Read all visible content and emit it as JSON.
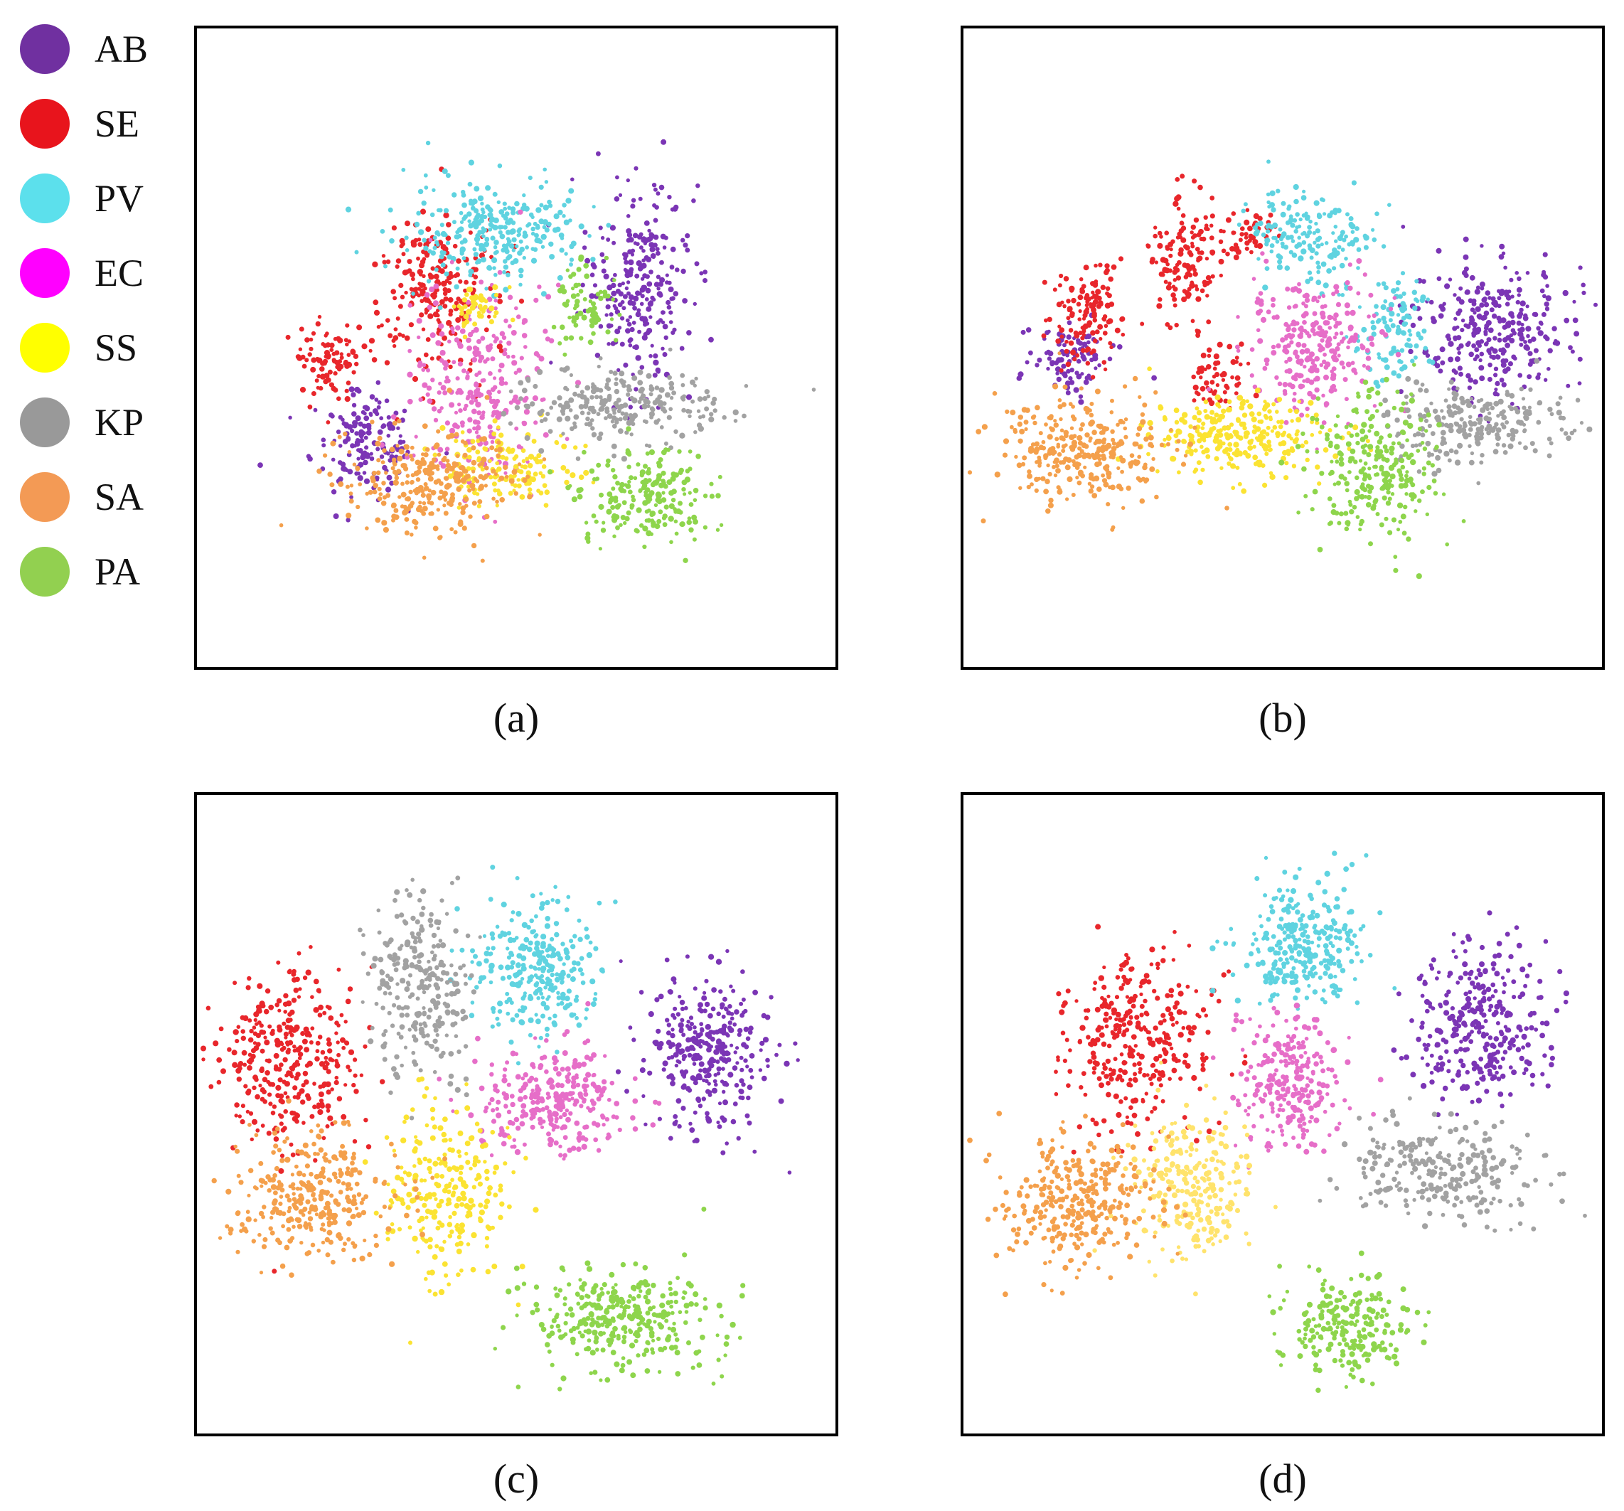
{
  "legend": [
    {
      "label": "AB",
      "color": "#7030a0"
    },
    {
      "label": "SE",
      "color": "#e8141c"
    },
    {
      "label": "PV",
      "color": "#5ce0ec"
    },
    {
      "label": "EC",
      "color": "#ff00ff"
    },
    {
      "label": "SS",
      "color": "#ffff00"
    },
    {
      "label": "KP",
      "color": "#999999"
    },
    {
      "label": "SA",
      "color": "#f39a55"
    },
    {
      "label": "PA",
      "color": "#92d050"
    }
  ],
  "chart_data": [
    {
      "type": "scatter",
      "caption": "(a)",
      "xlim": [
        0,
        100
      ],
      "ylim": [
        0,
        100
      ],
      "grid": false,
      "series": [
        {
          "name": "AB",
          "color": "#7b35b5",
          "clusters": [
            {
              "cx": 69,
              "cy": 60,
              "sx": 4,
              "sy": 8,
              "n": 260
            },
            {
              "cx": 26,
              "cy": 35,
              "sx": 4,
              "sy": 4,
              "n": 160
            }
          ]
        },
        {
          "name": "SE",
          "color": "#e8262b",
          "clusters": [
            {
              "cx": 37,
              "cy": 59,
              "sx": 5,
              "sy": 6,
              "n": 230
            },
            {
              "cx": 21,
              "cy": 48,
              "sx": 3,
              "sy": 3,
              "n": 90
            }
          ]
        },
        {
          "name": "PV",
          "color": "#5fd3e0",
          "clusters": [
            {
              "cx": 47,
              "cy": 68,
              "sx": 7,
              "sy": 4,
              "n": 280
            }
          ]
        },
        {
          "name": "EC",
          "color": "#e66ec8",
          "clusters": [
            {
              "cx": 44,
              "cy": 44,
              "sx": 5,
              "sy": 8,
              "n": 280
            }
          ]
        },
        {
          "name": "SS",
          "color": "#fbe332",
          "clusters": [
            {
              "cx": 49,
              "cy": 31,
              "sx": 5,
              "sy": 3,
              "n": 150
            },
            {
              "cx": 44,
              "cy": 56,
              "sx": 2,
              "sy": 2,
              "n": 50
            }
          ]
        },
        {
          "name": "KP",
          "color": "#a2a2a2",
          "clusters": [
            {
              "cx": 66,
              "cy": 41,
              "sx": 8,
              "sy": 3,
              "n": 240
            }
          ]
        },
        {
          "name": "SA",
          "color": "#f4a04c",
          "clusters": [
            {
              "cx": 37,
              "cy": 29,
              "sx": 7,
              "sy": 4,
              "n": 280
            }
          ]
        },
        {
          "name": "PA",
          "color": "#8ed54c",
          "clusters": [
            {
              "cx": 70,
              "cy": 27,
              "sx": 5,
              "sy": 4,
              "n": 200
            },
            {
              "cx": 61,
              "cy": 56,
              "sx": 2.5,
              "sy": 3,
              "n": 70
            }
          ]
        }
      ]
    },
    {
      "type": "scatter",
      "caption": "(b)",
      "xlim": [
        0,
        100
      ],
      "ylim": [
        0,
        100
      ],
      "grid": false,
      "series": [
        {
          "name": "AB",
          "color": "#7b35b5",
          "clusters": [
            {
              "cx": 83,
              "cy": 53,
              "sx": 6,
              "sy": 5,
              "n": 300
            },
            {
              "cx": 17,
              "cy": 48,
              "sx": 3,
              "sy": 3,
              "n": 90
            }
          ]
        },
        {
          "name": "SE",
          "color": "#e8262b",
          "clusters": [
            {
              "cx": 19,
              "cy": 55,
              "sx": 3,
              "sy": 4,
              "n": 130
            },
            {
              "cx": 35,
              "cy": 64,
              "sx": 3,
              "sy": 5,
              "n": 140
            },
            {
              "cx": 45,
              "cy": 68,
              "sx": 2,
              "sy": 2,
              "n": 50
            },
            {
              "cx": 40,
              "cy": 45,
              "sx": 2,
              "sy": 3,
              "n": 60
            }
          ]
        },
        {
          "name": "PV",
          "color": "#5fd3e0",
          "clusters": [
            {
              "cx": 54,
              "cy": 67,
              "sx": 5,
              "sy": 4,
              "n": 170
            },
            {
              "cx": 67,
              "cy": 52,
              "sx": 3,
              "sy": 4,
              "n": 100
            }
          ]
        },
        {
          "name": "EC",
          "color": "#e66ec8",
          "clusters": [
            {
              "cx": 55,
              "cy": 51,
              "sx": 5,
              "sy": 5,
              "n": 280
            }
          ]
        },
        {
          "name": "SS",
          "color": "#fbe332",
          "clusters": [
            {
              "cx": 43,
              "cy": 36,
              "sx": 7,
              "sy": 3,
              "n": 260
            }
          ]
        },
        {
          "name": "KP",
          "color": "#a2a2a2",
          "clusters": [
            {
              "cx": 80,
              "cy": 38,
              "sx": 7,
              "sy": 3,
              "n": 230
            }
          ]
        },
        {
          "name": "SA",
          "color": "#f4a04c",
          "clusters": [
            {
              "cx": 19,
              "cy": 34,
              "sx": 7,
              "sy": 4,
              "n": 300
            }
          ]
        },
        {
          "name": "PA",
          "color": "#8ed54c",
          "clusters": [
            {
              "cx": 64,
              "cy": 31,
              "sx": 5,
              "sy": 6,
              "n": 260
            }
          ]
        }
      ]
    },
    {
      "type": "scatter",
      "caption": "(c)",
      "xlim": [
        0,
        100
      ],
      "ylim": [
        0,
        100
      ],
      "grid": false,
      "series": [
        {
          "name": "AB",
          "color": "#7b35b5",
          "clusters": [
            {
              "cx": 80,
              "cy": 59,
              "sx": 5,
              "sy": 6,
              "n": 320
            }
          ]
        },
        {
          "name": "SE",
          "color": "#e8262b",
          "clusters": [
            {
              "cx": 15,
              "cy": 59,
              "sx": 5,
              "sy": 7,
              "n": 330
            }
          ]
        },
        {
          "name": "PV",
          "color": "#5fd3e0",
          "clusters": [
            {
              "cx": 53,
              "cy": 73,
              "sx": 5,
              "sy": 5,
              "n": 280
            }
          ]
        },
        {
          "name": "EC",
          "color": "#e66ec8",
          "clusters": [
            {
              "cx": 56,
              "cy": 52,
              "sx": 6,
              "sy": 4,
              "n": 280
            }
          ]
        },
        {
          "name": "SS",
          "color": "#fbe332",
          "clusters": [
            {
              "cx": 39,
              "cy": 38,
              "sx": 5,
              "sy": 7,
              "n": 250
            }
          ]
        },
        {
          "name": "KP",
          "color": "#a2a2a2",
          "clusters": [
            {
              "cx": 35,
              "cy": 70,
              "sx": 4,
              "sy": 7,
              "n": 260
            }
          ]
        },
        {
          "name": "SA",
          "color": "#f4a04c",
          "clusters": [
            {
              "cx": 19,
              "cy": 37,
              "sx": 6,
              "sy": 5,
              "n": 320
            }
          ]
        },
        {
          "name": "PA",
          "color": "#8ed54c",
          "clusters": [
            {
              "cx": 66,
              "cy": 18,
              "sx": 7,
              "sy": 4,
              "n": 330
            }
          ]
        }
      ]
    },
    {
      "type": "scatter",
      "caption": "(d)",
      "xlim": [
        0,
        100
      ],
      "ylim": [
        0,
        100
      ],
      "grid": false,
      "series": [
        {
          "name": "AB",
          "color": "#7b35b5",
          "clusters": [
            {
              "cx": 81,
              "cy": 64,
              "sx": 5,
              "sy": 6,
              "n": 320
            }
          ]
        },
        {
          "name": "SE",
          "color": "#e8262b",
          "clusters": [
            {
              "cx": 27,
              "cy": 61,
              "sx": 6,
              "sy": 7,
              "n": 330
            }
          ]
        },
        {
          "name": "PV",
          "color": "#5fd3e0",
          "clusters": [
            {
              "cx": 53,
              "cy": 76,
              "sx": 5,
              "sy": 5,
              "n": 280
            }
          ]
        },
        {
          "name": "EC",
          "color": "#e66ec8",
          "clusters": [
            {
              "cx": 51,
              "cy": 55,
              "sx": 4,
              "sy": 5,
              "n": 250
            }
          ]
        },
        {
          "name": "SS",
          "color": "#ffe36c",
          "clusters": [
            {
              "cx": 36,
              "cy": 39,
              "sx": 5,
              "sy": 6,
              "n": 260
            }
          ]
        },
        {
          "name": "KP",
          "color": "#a2a2a2",
          "clusters": [
            {
              "cx": 75,
              "cy": 41,
              "sx": 7,
              "sy": 4,
              "n": 260
            }
          ]
        },
        {
          "name": "SA",
          "color": "#f4a04c",
          "clusters": [
            {
              "cx": 18,
              "cy": 36,
              "sx": 6,
              "sy": 5,
              "n": 320
            }
          ]
        },
        {
          "name": "PA",
          "color": "#8ed54c",
          "clusters": [
            {
              "cx": 60,
              "cy": 17,
              "sx": 5,
              "sy": 4,
              "n": 220
            }
          ]
        }
      ]
    }
  ]
}
